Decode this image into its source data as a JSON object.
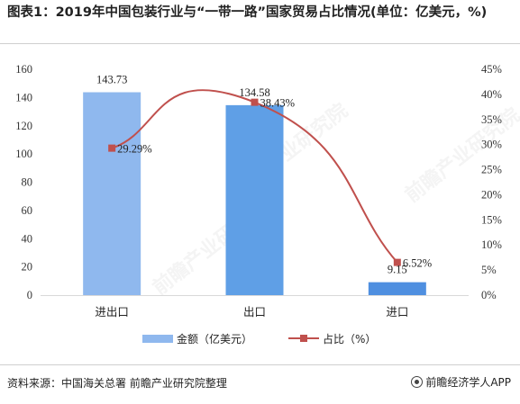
{
  "title": "图表1：2019年中国包装行业与“一带一路”国家贸易占比情况(单位：亿美元，%)",
  "source": "资料来源：中国海关总署 前瞻产业研究院整理",
  "brand": "前瞻经济学人APP",
  "watermarks": [
    "前瞻产业研究院",
    "前瞻产业研究院",
    "前瞻产业研究院"
  ],
  "legend": {
    "bar_label": "金额（亿美元）",
    "line_label": "占比（%）"
  },
  "colors": {
    "bar1": "#8fb8ee",
    "bar2": "#5f9fe6",
    "bar3": "#4f8fe0",
    "line": "#c0504d",
    "legend_bar": "#8fb8ee"
  },
  "chart_data": {
    "type": "bar",
    "title": "",
    "categories": [
      "进出口",
      "出口",
      "进口"
    ],
    "series": [
      {
        "name": "金额（亿美元）",
        "type": "bar",
        "axis": "left",
        "values": [
          143.73,
          134.58,
          9.15
        ],
        "labels": [
          "143.73",
          "134.58",
          "9.15"
        ]
      },
      {
        "name": "占比（%）",
        "type": "line",
        "axis": "right",
        "values": [
          29.29,
          38.43,
          6.52
        ],
        "labels": [
          "29.29%",
          "38.43%",
          "6.52%"
        ]
      }
    ],
    "left_axis": {
      "ylim": [
        0,
        160
      ],
      "ticks": [
        "0",
        "20",
        "40",
        "60",
        "80",
        "100",
        "120",
        "140",
        "160"
      ]
    },
    "right_axis": {
      "ylim": [
        0,
        45
      ],
      "ticks": [
        "0%",
        "5%",
        "10%",
        "15%",
        "20%",
        "25%",
        "30%",
        "35%",
        "40%",
        "45%"
      ]
    },
    "grid": false,
    "legend_position": "bottom"
  }
}
